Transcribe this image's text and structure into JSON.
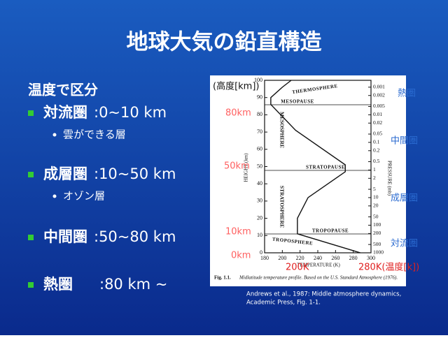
{
  "title": "地球大気の鉛直構造",
  "list": {
    "heading": "温度で区分",
    "items": [
      {
        "label": "対流圏",
        "value": ":0~10 km",
        "sub": "雲ができる層"
      },
      {
        "label": "成層圏",
        "value": ":10~50 km",
        "sub": "オゾン層"
      },
      {
        "label": "中間圏",
        "value": ":50~80 km"
      },
      {
        "label": "熱圏",
        "value": ":80 km ~"
      }
    ]
  },
  "figure": {
    "x_label": "TEMPERATURE (K)",
    "y_label": "HEIGHT (km)",
    "y2_label": "PRESSURE (mb)",
    "layers": [
      "THERMOSPHERE",
      "MESOPAUSE",
      "MESOSPHERE",
      "STRATOPAUSE",
      "STRATOSPHERE",
      "TROPOPAUSE",
      "TROPOSPHERE"
    ],
    "xlim": [
      180,
      300
    ],
    "xticks": [
      180,
      200,
      220,
      240,
      260,
      280,
      300
    ],
    "ylim": [
      0,
      100
    ],
    "yticks": [
      0,
      10,
      20,
      30,
      40,
      50,
      60,
      70,
      80,
      90,
      100
    ],
    "y2ticks": [
      0.001,
      0.002,
      0.005,
      0.01,
      0.02,
      0.05,
      0.1,
      0.2,
      0.5,
      1,
      2,
      5,
      10,
      20,
      50,
      100,
      200,
      500,
      1000
    ],
    "profile": {
      "temperature": [
        288,
        217,
        217,
        229,
        271,
        271,
        215,
        187,
        187,
        200,
        210
      ],
      "height": [
        0,
        11,
        20,
        32,
        47,
        51,
        71,
        86,
        90,
        96,
        100
      ]
    },
    "caption_lead": "Fig. 1.1.",
    "caption": "Midlatitude temperature profile. Based on the U.S. Standard Atmosphere (1976).",
    "credit": [
      "Andrews et al., 1987: Middle atmosphere dynamics,",
      "Academic Press, Fig. 1-1."
    ]
  },
  "annotations": {
    "height_unit": "(高度[km])",
    "km80": "80km",
    "km50": "50km",
    "km10": "10km",
    "km0": "0km",
    "k200": "200K",
    "k280": "280K(温度[k])",
    "thermo": "熱圏",
    "meso": "中間圏",
    "strato": "成層圏",
    "tropo": "対流圏"
  }
}
